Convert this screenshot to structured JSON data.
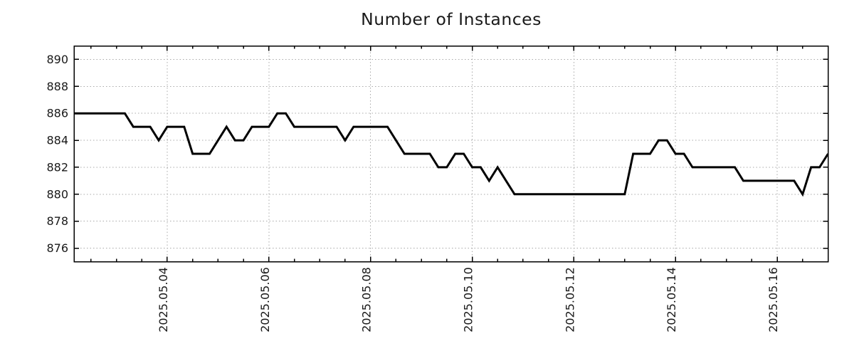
{
  "chart_data": {
    "type": "line",
    "title": "Number of Instances",
    "xlabel": "",
    "ylabel": "",
    "x_start": "2025-05-02 04:00",
    "x_step_hours": 4,
    "series": [
      {
        "name": "Number of Instances",
        "values": [
          886,
          886,
          886,
          886,
          886,
          886,
          886,
          885,
          885,
          885,
          884,
          885,
          885,
          885,
          883,
          883,
          883,
          884,
          885,
          884,
          884,
          885,
          885,
          885,
          886,
          886,
          885,
          885,
          885,
          885,
          885,
          885,
          884,
          885,
          885,
          885,
          885,
          885,
          884,
          883,
          883,
          883,
          883,
          882,
          882,
          883,
          883,
          882,
          882,
          881,
          882,
          881,
          880,
          880,
          880,
          880,
          880,
          880,
          880,
          880,
          880,
          880,
          880,
          880,
          880,
          880,
          883,
          883,
          883,
          884,
          884,
          883,
          883,
          882,
          882,
          882,
          882,
          882,
          882,
          881,
          881,
          881,
          881,
          881,
          881,
          881,
          880,
          882,
          882,
          883
        ]
      }
    ],
    "x_ticks": {
      "labels": [
        "2025.05.04",
        "2025.05.06",
        "2025.05.08",
        "2025.05.10",
        "2025.05.12",
        "2025.05.14",
        "2025.05.16"
      ],
      "indices": [
        11,
        23,
        35,
        47,
        59,
        71,
        83
      ],
      "minor_every_samples": 3,
      "minor_phase": 2
    },
    "y_ticks": [
      876,
      878,
      880,
      882,
      884,
      886,
      888,
      890
    ],
    "ylim": [
      875,
      891
    ],
    "grid": "dotted",
    "legend": "none",
    "colors": {
      "line": "#000000",
      "grid": "#a9a9a9",
      "text": "#1a1a1a",
      "border": "#000000",
      "background": "#ffffff"
    }
  }
}
